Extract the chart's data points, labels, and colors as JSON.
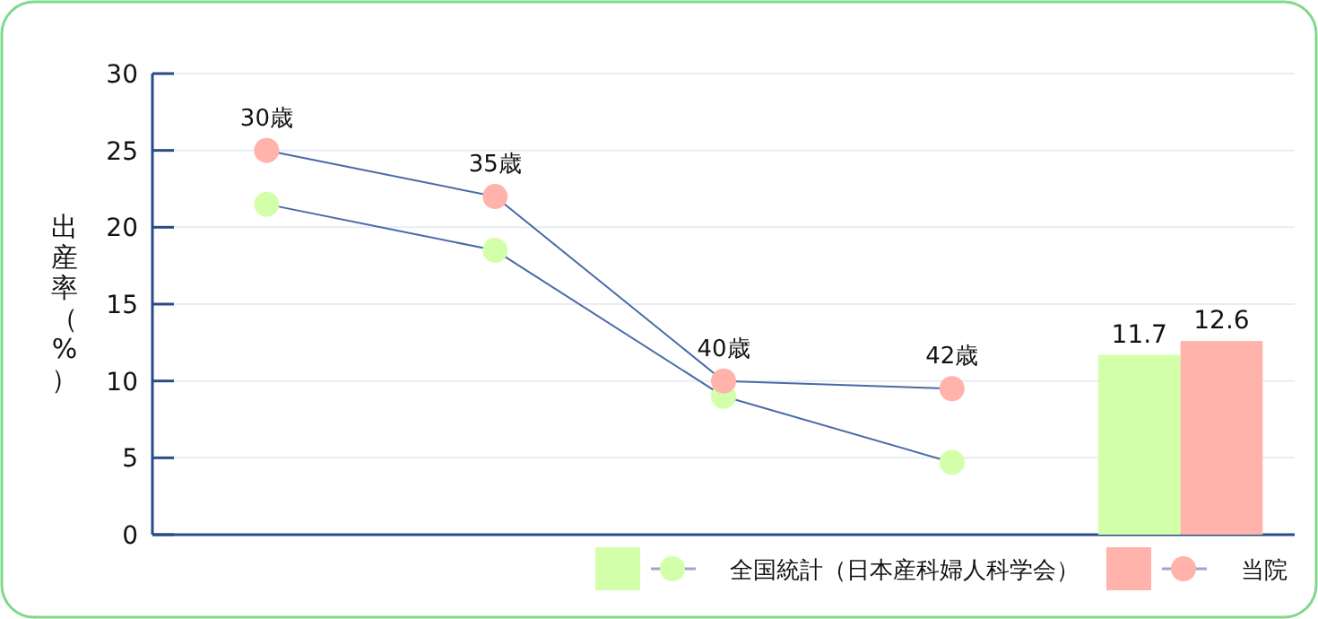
{
  "chart_data": {
    "type": "line",
    "ylabel": "出産率（%）",
    "categories": [
      null,
      null,
      null,
      null,
      null
    ],
    "ylim": [
      0,
      30
    ],
    "yticks": [
      0,
      5,
      10,
      15,
      20,
      25,
      30
    ],
    "grid": "y",
    "legend": "bottom right",
    "marker": "circle",
    "series": [
      {
        "name": "全国統計（日本産科婦人科学会）",
        "color": "#d4ffaa",
        "values": [
          21.5,
          18.5,
          9,
          4.7,
          null
        ]
      },
      {
        "name": "当院",
        "color": "#ffb3aa",
        "values": [
          25,
          22,
          10,
          9.5,
          null
        ]
      },
      {
        "type": "bar",
        "color": "#d4ffaa",
        "values": [
          null,
          null,
          null,
          null,
          11.7
        ],
        "value_labels": [
          null,
          null,
          null,
          null,
          "11.7"
        ]
      },
      {
        "type": "bar",
        "color": "#ffb3aa",
        "values": [
          null,
          null,
          null,
          null,
          12.6
        ],
        "value_labels": [
          null,
          null,
          null,
          null,
          "12.6"
        ]
      }
    ],
    "annotations": [
      {
        "text": "30歳",
        "y": 25
      },
      {
        "text": "35歳",
        "y": 22
      },
      {
        "text": "40歳",
        "y": 10
      },
      {
        "text": "42歳",
        "y": 9.5
      }
    ]
  }
}
